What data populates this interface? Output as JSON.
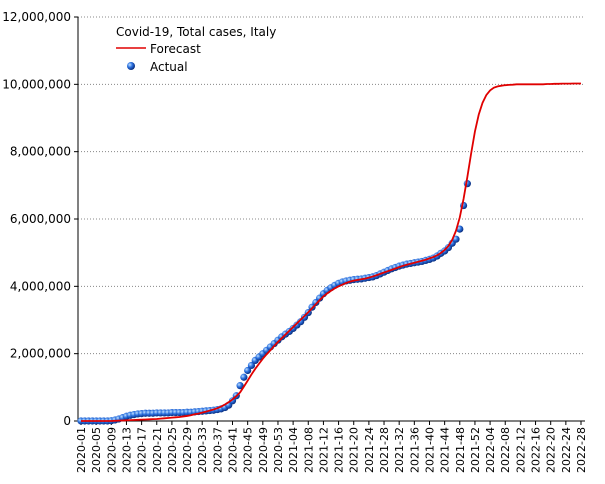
{
  "chart_data": {
    "type": "line",
    "title": "Covid-19, Total cases, Italy",
    "categories": [
      "2020-01",
      null,
      null,
      null,
      "2020-05",
      null,
      null,
      null,
      "2020-09",
      null,
      null,
      null,
      "2020-13",
      null,
      null,
      null,
      "2020-17",
      null,
      null,
      null,
      "2020-21",
      null,
      null,
      null,
      "2020-25",
      null,
      null,
      null,
      "2020-29",
      null,
      null,
      null,
      "2020-33",
      null,
      null,
      null,
      "2020-37",
      null,
      null,
      null,
      "2020-41",
      null,
      null,
      null,
      "2020-45",
      null,
      null,
      null,
      "2020-49",
      null,
      null,
      null,
      "2020-53",
      null,
      null,
      null,
      "2021-04",
      null,
      null,
      null,
      "2021-08",
      null,
      null,
      null,
      "2021-12",
      null,
      null,
      null,
      "2021-16",
      null,
      null,
      null,
      "2021-20",
      null,
      null,
      null,
      "2021-24",
      null,
      null,
      null,
      "2021-28",
      null,
      null,
      null,
      "2021-32",
      null,
      null,
      null,
      "2021-36",
      null,
      null,
      null,
      "2021-40",
      null,
      null,
      null,
      "2021-44",
      null,
      null,
      null,
      "2021-48",
      null,
      null,
      null,
      "2021-52",
      null,
      null,
      null,
      "2022-04",
      null,
      null,
      null,
      "2022-08",
      null,
      null,
      null,
      "2022-12",
      null,
      null,
      null,
      "2022-16",
      null,
      null,
      null,
      "2022-20",
      null,
      null,
      null,
      "2022-24",
      null,
      null,
      null,
      "2022-28"
    ],
    "series": [
      {
        "name": "Forecast",
        "color": "#e00000",
        "values": [
          0,
          0,
          0,
          0,
          0,
          0,
          0,
          0,
          0,
          5000,
          10000,
          15000,
          20000,
          25000,
          30000,
          35000,
          40000,
          45000,
          50000,
          55000,
          60000,
          70000,
          80000,
          90000,
          100000,
          110000,
          120000,
          135000,
          150000,
          170000,
          200000,
          220000,
          250000,
          280000,
          310000,
          340000,
          380000,
          430000,
          490000,
          560000,
          640000,
          740000,
          850000,
          1020000,
          1200000,
          1380000,
          1550000,
          1700000,
          1850000,
          1980000,
          2100000,
          2230000,
          2350000,
          2460000,
          2570000,
          2680000,
          2790000,
          2900000,
          3010000,
          3120000,
          3230000,
          3350000,
          3470000,
          3590000,
          3700000,
          3790000,
          3870000,
          3940000,
          4000000,
          4050000,
          4100000,
          4140000,
          4170000,
          4190000,
          4210000,
          4230000,
          4260000,
          4290000,
          4330000,
          4370000,
          4410000,
          4450000,
          4490000,
          4530000,
          4570000,
          4610000,
          4640000,
          4670000,
          4700000,
          4730000,
          4760000,
          4790000,
          4830000,
          4870000,
          4920000,
          4990000,
          5080000,
          5200000,
          5380000,
          5650000,
          6050000,
          6600000,
          7250000,
          7950000,
          8600000,
          9100000,
          9450000,
          9680000,
          9820000,
          9900000,
          9940000,
          9960000,
          9975000,
          9985000,
          9990000,
          10000000,
          10000000,
          10000000,
          10000000,
          10000000,
          10000000,
          10000000,
          10000000,
          10010000,
          10010000,
          10015000,
          10015000,
          10020000,
          10020000,
          10020000,
          10025000,
          10025000,
          10025000
        ]
      },
      {
        "name": "Actual",
        "color": "#1a5fd0",
        "values": [
          0,
          0,
          0,
          0,
          0,
          0,
          0,
          0,
          10000,
          30000,
          60000,
          100000,
          140000,
          170000,
          190000,
          210000,
          220000,
          230000,
          230000,
          230000,
          240000,
          240000,
          240000,
          240000,
          250000,
          250000,
          250000,
          250000,
          260000,
          260000,
          270000,
          280000,
          290000,
          300000,
          310000,
          320000,
          340000,
          360000,
          400000,
          470000,
          600000,
          750000,
          1050000,
          1300000,
          1500000,
          1650000,
          1800000,
          1900000,
          2000000,
          2100000,
          2200000,
          2300000,
          2400000,
          2500000,
          2580000,
          2660000,
          2750000,
          2850000,
          2950000,
          3080000,
          3220000,
          3380000,
          3520000,
          3650000,
          3780000,
          3880000,
          3960000,
          4030000,
          4090000,
          4130000,
          4160000,
          4180000,
          4200000,
          4210000,
          4220000,
          4240000,
          4260000,
          4280000,
          4320000,
          4370000,
          4420000,
          4470000,
          4520000,
          4560000,
          4600000,
          4630000,
          4660000,
          4680000,
          4700000,
          4720000,
          4740000,
          4770000,
          4800000,
          4840000,
          4900000,
          4980000,
          5050000,
          5150000,
          5280000,
          5400000,
          5700000,
          6400000,
          7050000,
          null,
          null,
          null,
          null,
          null,
          null,
          null,
          null,
          null,
          null,
          null,
          null,
          null,
          null,
          null,
          null,
          null,
          null,
          null,
          null,
          null,
          null,
          null,
          null,
          null,
          null,
          null,
          null,
          null,
          null
        ]
      }
    ],
    "ylim": [
      0,
      12000000
    ],
    "yticks": [
      0,
      {
        "value": 2000000,
        "label": "2,000,000"
      },
      {
        "value": 4000000,
        "label": "4,000,000"
      },
      {
        "value": 6000000,
        "label": "6,000,000"
      },
      {
        "value": 8000000,
        "label": "8,000,000"
      },
      {
        "value": 10000000,
        "label": "10,000,000"
      },
      {
        "value": 12000000,
        "label": "12,000,000"
      }
    ],
    "grid": true
  }
}
